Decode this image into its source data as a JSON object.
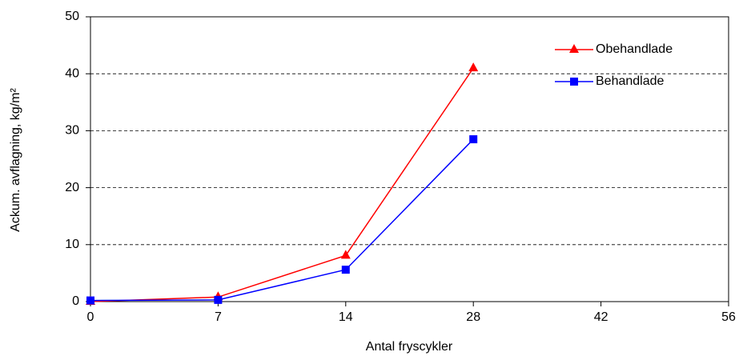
{
  "chart_data": {
    "type": "line",
    "x_label": "Antal fryscykler",
    "y_label": "Ackum. avflagning, kg/m²",
    "categories": [
      "0",
      "7",
      "14",
      "28",
      "42",
      "56"
    ],
    "series": [
      {
        "name": "Obehandlade",
        "color": "#ff0000",
        "marker": "triangle",
        "values": [
          0,
          0.8,
          8.1,
          41,
          null,
          null
        ]
      },
      {
        "name": "Behandlade",
        "color": "#0000ff",
        "marker": "square",
        "values": [
          0.2,
          0.3,
          5.6,
          28.5,
          null,
          null
        ]
      }
    ],
    "ylim": [
      0,
      50
    ],
    "yticks": [
      0,
      10,
      20,
      30,
      40,
      50
    ],
    "grid": true,
    "legend": "upper right"
  }
}
